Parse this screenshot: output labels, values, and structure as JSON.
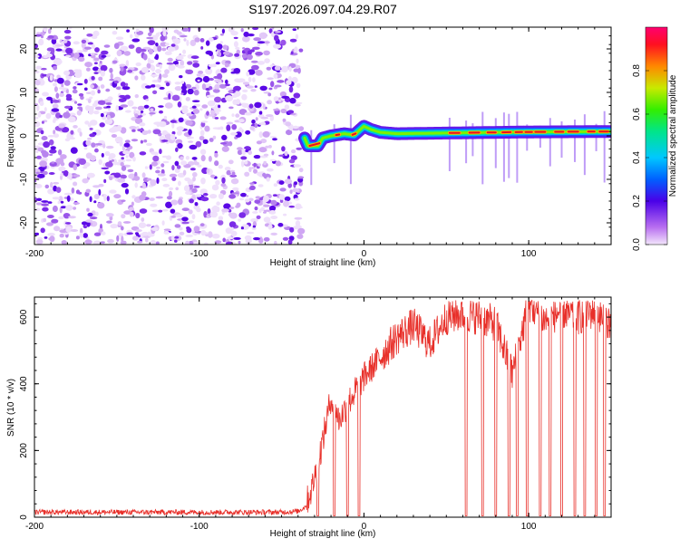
{
  "title": "S197.2026.097.04.29.R07",
  "chart_data": [
    {
      "type": "heatmap",
      "name": "spectrogram",
      "xlabel": "Height of straight line (km)",
      "ylabel": "Frequency (Hz)",
      "xlim": [
        -200,
        150
      ],
      "ylim": [
        -25,
        25
      ],
      "xticks": [
        -200,
        -100,
        0,
        100
      ],
      "yticks": [
        -20,
        -10,
        0,
        10,
        20
      ],
      "colorbar": {
        "label": "Normalized spectral amplitude",
        "range": [
          0,
          1
        ],
        "ticks": [
          "0.0",
          "0.2",
          "0.4",
          "0.6",
          "0.8"
        ]
      },
      "noise_region_x": [
        -200,
        -38
      ],
      "signal_start_x": -36,
      "carrier_track": [
        {
          "x": -36,
          "y": -0.5
        },
        {
          "x": -34,
          "y": -2.3
        },
        {
          "x": -28,
          "y": -2.3
        },
        {
          "x": -25,
          "y": -0.5
        },
        {
          "x": -20,
          "y": 0.0
        },
        {
          "x": -12,
          "y": 0.5
        },
        {
          "x": -6,
          "y": 0.2
        },
        {
          "x": 0,
          "y": 2.2
        },
        {
          "x": 4,
          "y": 1.5
        },
        {
          "x": 10,
          "y": 0.8
        },
        {
          "x": 20,
          "y": 0.5
        },
        {
          "x": 40,
          "y": 0.6
        },
        {
          "x": 60,
          "y": 0.7
        },
        {
          "x": 100,
          "y": 0.9
        },
        {
          "x": 150,
          "y": 1.0
        }
      ]
    },
    {
      "type": "line",
      "name": "snr",
      "xlabel": "Height of straight line (km)",
      "ylabel": "SNR (10 * v/v)",
      "xlim": [
        -200,
        150
      ],
      "ylim": [
        0,
        660
      ],
      "xticks": [
        -200,
        -100,
        0,
        100
      ],
      "yticks": [
        0,
        200,
        400,
        600
      ],
      "series": [
        {
          "name": "SNR",
          "color": "#e8302a",
          "x": [
            -200,
            -150,
            -100,
            -50,
            -40,
            -36,
            -32,
            -28,
            -25,
            -20,
            -15,
            -10,
            -5,
            0,
            10,
            20,
            30,
            40,
            50,
            60,
            70,
            80,
            90,
            100,
            110,
            120,
            130,
            140,
            150
          ],
          "y": [
            15,
            15,
            15,
            15,
            18,
            30,
            80,
            160,
            230,
            360,
            290,
            340,
            380,
            420,
            480,
            540,
            575,
            520,
            600,
            610,
            600,
            580,
            430,
            640,
            590,
            620,
            600,
            620,
            580
          ]
        }
      ],
      "dropouts_x": [
        -28,
        -18,
        -10,
        -3,
        62,
        72,
        80,
        88,
        93,
        99,
        107,
        113,
        120,
        128,
        134,
        141,
        146
      ]
    }
  ]
}
